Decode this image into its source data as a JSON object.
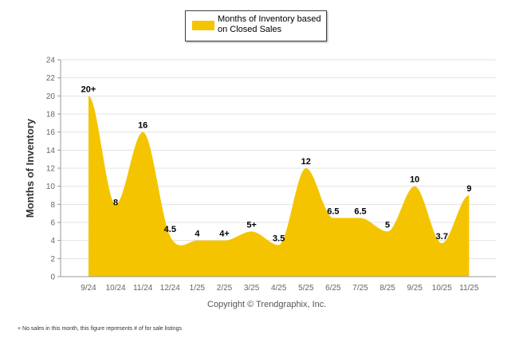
{
  "legend": {
    "label": "Months of Inventory based on Closed Sales"
  },
  "copyright": "Copyright © Trendgraphix, Inc.",
  "footnote": "+  No sales in this month, this figure represents # of for sale listings",
  "colors": {
    "area": "#f5c400",
    "grid": "#e3e3e3"
  },
  "chart_data": {
    "type": "area",
    "title": "",
    "xlabel": "",
    "ylabel": "Months of Inventory",
    "ylim": [
      0,
      24
    ],
    "yticks": [
      0,
      2,
      4,
      6,
      8,
      10,
      12,
      14,
      16,
      18,
      20,
      22,
      24
    ],
    "categories": [
      "9/24",
      "10/24",
      "11/24",
      "12/24",
      "1/25",
      "2/25",
      "3/25",
      "4/25",
      "5/25",
      "6/25",
      "7/25",
      "8/25",
      "9/25",
      "10/25",
      "11/25"
    ],
    "series": [
      {
        "name": "Months of Inventory based on Closed Sales",
        "values": [
          20,
          8,
          16,
          4.5,
          4,
          4,
          5,
          3.5,
          12,
          6.5,
          6.5,
          5,
          10,
          3.7,
          9
        ],
        "data_labels": [
          "20+",
          "8",
          "16",
          "4.5",
          "4",
          "4+",
          "5+",
          "3.5",
          "12",
          "6.5",
          "6.5",
          "5",
          "10",
          "3.7",
          "9"
        ]
      }
    ],
    "grid": true,
    "legend_position": "top-center"
  }
}
